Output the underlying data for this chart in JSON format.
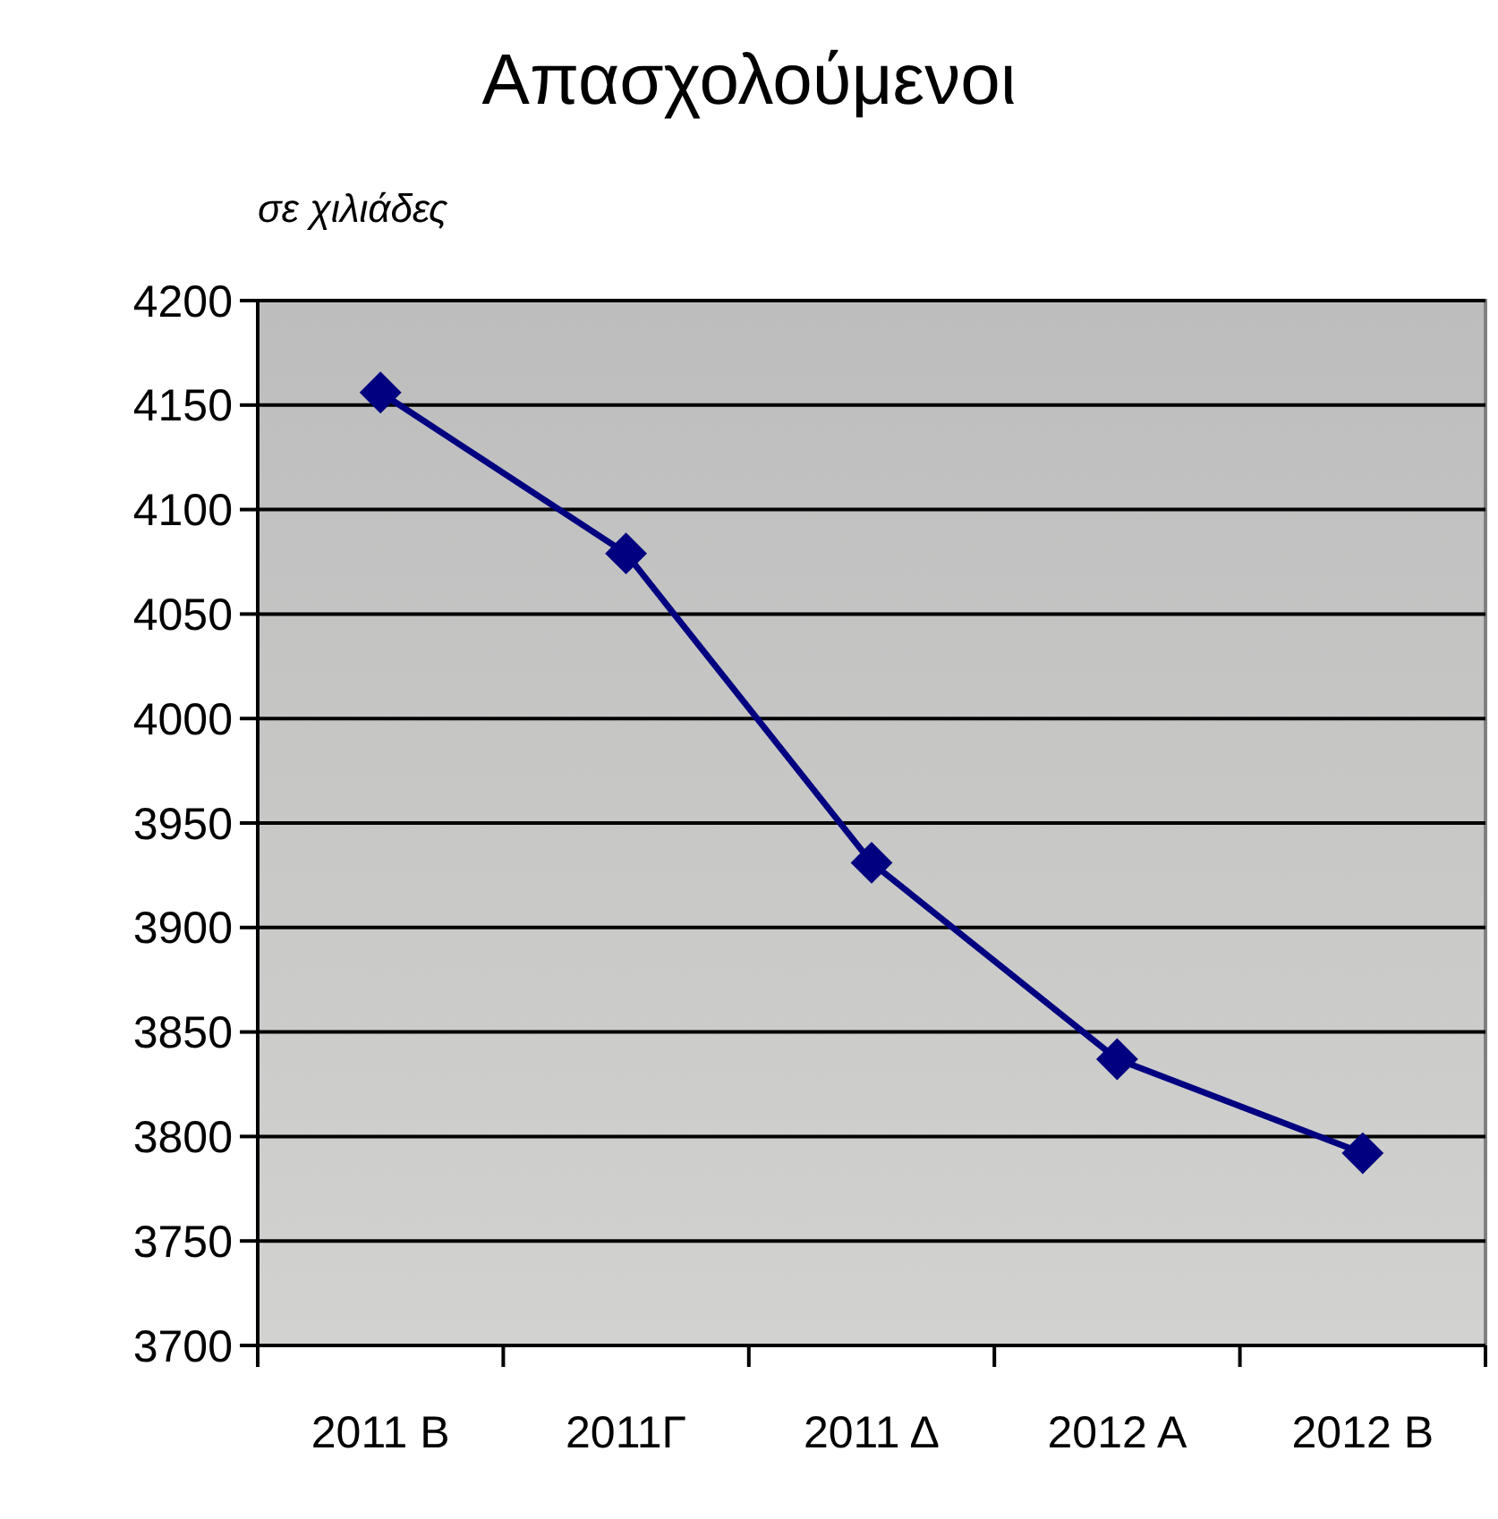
{
  "chart_data": {
    "type": "line",
    "title": "Απασχολούμενοι",
    "ylabel": "σε χιλιάδες",
    "categories": [
      "2011 Β",
      "2011Γ",
      "2011 Δ",
      "2012 Α",
      "2012 Β"
    ],
    "series": [
      {
        "color": "#000080",
        "values": [
          4156,
          4079,
          3931,
          3837,
          3792
        ]
      }
    ],
    "ylim": [
      3700,
      4200
    ],
    "yticks": [
      3700,
      3750,
      3800,
      3850,
      3900,
      3950,
      4000,
      4050,
      4100,
      4150,
      4200
    ],
    "grid": "y",
    "marker": "diamond",
    "line_style": "solid"
  }
}
